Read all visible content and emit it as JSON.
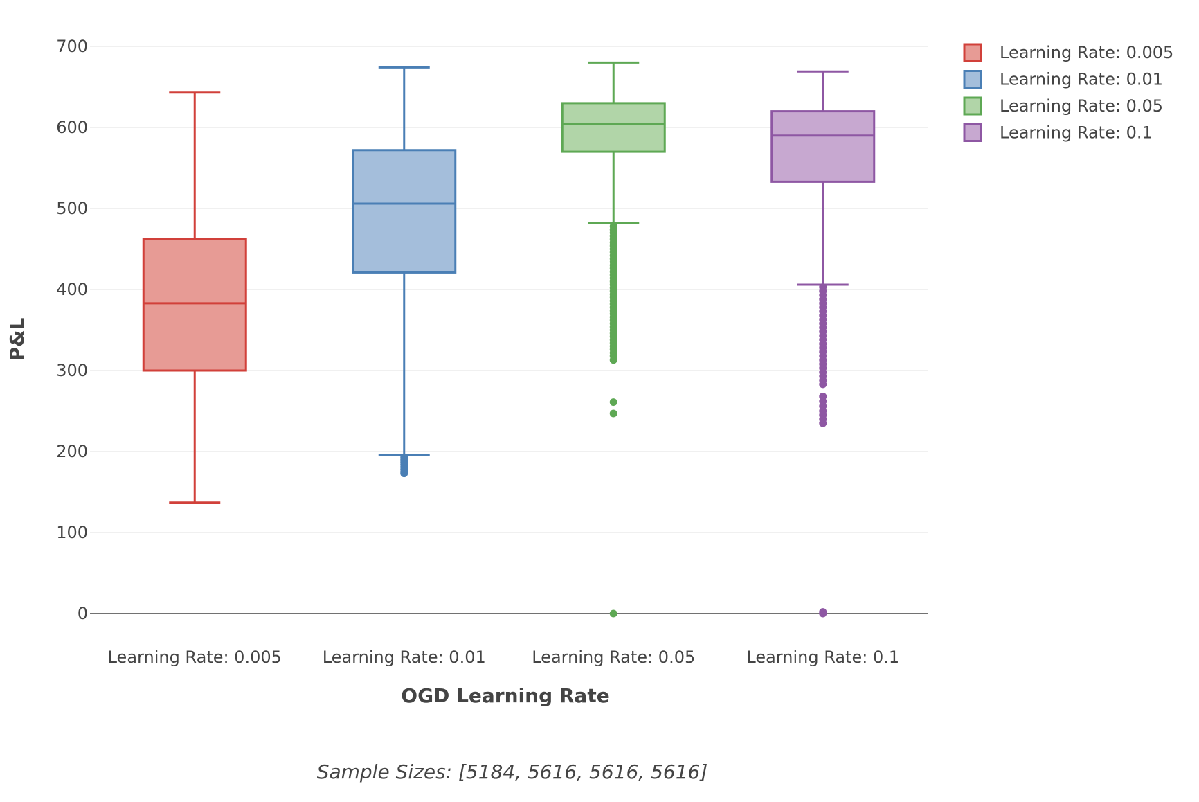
{
  "chart_data": {
    "type": "box",
    "title": "",
    "xlabel": "OGD Learning Rate",
    "ylabel": "P&L",
    "ylim": [
      0,
      700
    ],
    "yticks": [
      0,
      100,
      200,
      300,
      400,
      500,
      600,
      700
    ],
    "grid": true,
    "legend_position": "top-right",
    "annotation": "Sample Sizes: [5184, 5616, 5616, 5616]",
    "categories": [
      "Learning Rate: 0.005",
      "Learning Rate: 0.01",
      "Learning Rate: 0.05",
      "Learning Rate: 0.1"
    ],
    "series": [
      {
        "name": "Learning Rate: 0.005",
        "color": "#d1403a",
        "fill": "#e79b95",
        "whisker_low": 137,
        "q1": 300,
        "median": 383,
        "q3": 462,
        "whisker_high": 643,
        "outliers": []
      },
      {
        "name": "Learning Rate: 0.01",
        "color": "#4a7fb5",
        "fill": "#a4bedb",
        "whisker_low": 196,
        "q1": 421,
        "median": 506,
        "q3": 572,
        "whisker_high": 674,
        "outliers": [
          193,
          190,
          187,
          184,
          181,
          178,
          175,
          173
        ]
      },
      {
        "name": "Learning Rate: 0.05",
        "color": "#5ea854",
        "fill": "#b1d5a8",
        "whisker_low": 482,
        "q1": 570,
        "median": 604,
        "q3": 630,
        "whisker_high": 680,
        "outliers": [
          478,
          474,
          470,
          466,
          462,
          458,
          454,
          450,
          446,
          442,
          438,
          434,
          430,
          426,
          422,
          418,
          414,
          410,
          406,
          402,
          398,
          394,
          390,
          386,
          382,
          378,
          374,
          370,
          366,
          362,
          358,
          354,
          350,
          346,
          342,
          338,
          334,
          330,
          326,
          322,
          318,
          313,
          261,
          247,
          0
        ]
      },
      {
        "name": "Learning Rate: 0.1",
        "color": "#8e57a3",
        "fill": "#c7a8d0",
        "whisker_low": 406,
        "q1": 533,
        "median": 590,
        "q3": 620,
        "whisker_high": 669,
        "outliers": [
          403,
          398,
          393,
          388,
          383,
          378,
          373,
          368,
          363,
          358,
          353,
          348,
          343,
          338,
          333,
          328,
          323,
          318,
          313,
          308,
          303,
          298,
          293,
          288,
          283,
          268,
          262,
          256,
          250,
          245,
          240,
          235,
          2,
          0
        ]
      }
    ]
  }
}
